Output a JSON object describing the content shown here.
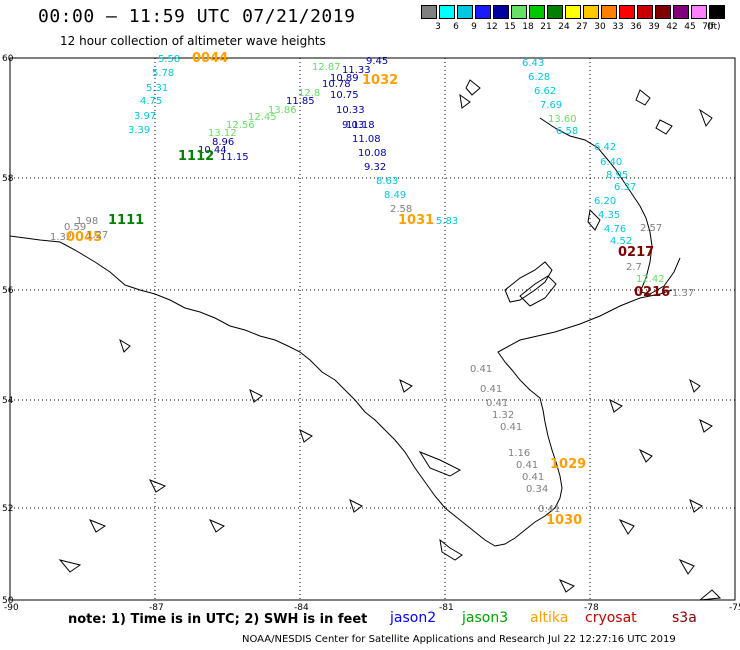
{
  "title": "00:00 – 11:59 UTC 07/21/2019",
  "subtitle": "12 hour collection of altimeter wave heights",
  "scale": {
    "labels": [
      "3",
      "6",
      "9",
      "12",
      "15",
      "18",
      "21",
      "24",
      "27",
      "30",
      "33",
      "36",
      "39",
      "42",
      "45",
      "70"
    ],
    "colors": [
      "#808080",
      "#00ffff",
      "#00c8e0",
      "#1a1aff",
      "#0000a0",
      "#66e066",
      "#00c800",
      "#008000",
      "#ffff00",
      "#ffc800",
      "#ff8000",
      "#ff0000",
      "#c80000",
      "#800000",
      "#800080",
      "#ff80ff",
      "#000000"
    ],
    "unit": "(ft)"
  },
  "axes": {
    "lat_labels": [
      "60",
      "58",
      "56",
      "54",
      "52",
      "50"
    ],
    "lon_labels": [
      "-90",
      "-87",
      "-84",
      "-81",
      "-78",
      "-75"
    ]
  },
  "note": "note:  1) Time is in UTC;  2) SWH is in feet",
  "satellites": [
    {
      "name": "jason2",
      "color": "#0000ff"
    },
    {
      "name": "jason3",
      "color": "#00a000"
    },
    {
      "name": "altika",
      "color": "#ffa000"
    },
    {
      "name": "cryosat",
      "color": "#c00000"
    },
    {
      "name": "s3a",
      "color": "#800000"
    }
  ],
  "credit": "NOAA/NESDIS Center for Satellite Applications and Research      Jul 22 12:27:16 UTC 2019",
  "readings": [
    {
      "text": "5.58",
      "color": "#00c8e0"
    },
    {
      "text": "5.78",
      "color": "#00c8e0"
    },
    {
      "text": "5.31",
      "color": "#00c8e0"
    },
    {
      "text": "4.75",
      "color": "#00c8e0"
    },
    {
      "text": "3.97",
      "color": "#00c8e0"
    },
    {
      "text": "3.39",
      "color": "#00c8e0"
    },
    {
      "text": "0044",
      "color": "#ffa000"
    },
    {
      "text": "12.87",
      "color": "#66e066"
    },
    {
      "text": "9.45",
      "color": "#0000a0"
    },
    {
      "text": "11.33",
      "color": "#0000a0"
    },
    {
      "text": "10.89",
      "color": "#0000a0"
    },
    {
      "text": "10.78",
      "color": "#0000a0"
    },
    {
      "text": "1032",
      "color": "#ffa000"
    },
    {
      "text": "12.8",
      "color": "#66e066"
    },
    {
      "text": "13.86",
      "color": "#66e066"
    },
    {
      "text": "12.45",
      "color": "#66e066"
    },
    {
      "text": "12.56",
      "color": "#66e066"
    },
    {
      "text": "13.12",
      "color": "#66e066"
    },
    {
      "text": "11.85",
      "color": "#0000a0"
    },
    {
      "text": "10.75",
      "color": "#0000a0"
    },
    {
      "text": "10.33",
      "color": "#0000a0"
    },
    {
      "text": "9.03",
      "color": "#0000a0"
    },
    {
      "text": "8.96",
      "color": "#0000a0"
    },
    {
      "text": "10.44",
      "color": "#0000a0"
    },
    {
      "text": "1112",
      "color": "#008000"
    },
    {
      "text": "11.15",
      "color": "#0000a0"
    },
    {
      "text": "11.18",
      "color": "#0000a0"
    },
    {
      "text": "11.08",
      "color": "#0000a0"
    },
    {
      "text": "10.08",
      "color": "#0000a0"
    },
    {
      "text": "9.32",
      "color": "#0000a0"
    },
    {
      "text": "8.63",
      "color": "#00c8e0"
    },
    {
      "text": "8.49",
      "color": "#00c8e0"
    },
    {
      "text": "2.58",
      "color": "#808080"
    },
    {
      "text": "1031",
      "color": "#ffa000"
    },
    {
      "text": "5.83",
      "color": "#00c8e0"
    },
    {
      "text": "6.43",
      "color": "#00c8e0"
    },
    {
      "text": "6.28",
      "color": "#00c8e0"
    },
    {
      "text": "6.62",
      "color": "#00c8e0"
    },
    {
      "text": "7.69",
      "color": "#00c8e0"
    },
    {
      "text": "13.60",
      "color": "#66e066"
    },
    {
      "text": "6.58",
      "color": "#00c8e0"
    },
    {
      "text": "6.42",
      "color": "#00c8e0"
    },
    {
      "text": "6.40",
      "color": "#00c8e0"
    },
    {
      "text": "8.95",
      "color": "#00c8e0"
    },
    {
      "text": "6.37",
      "color": "#00c8e0"
    },
    {
      "text": "6.20",
      "color": "#00c8e0"
    },
    {
      "text": "4.35",
      "color": "#00c8e0"
    },
    {
      "text": "4.76",
      "color": "#00c8e0"
    },
    {
      "text": "4.52",
      "color": "#00c8e0"
    },
    {
      "text": "0217",
      "color": "#800000"
    },
    {
      "text": "2.57",
      "color": "#808080"
    },
    {
      "text": "2.7",
      "color": "#808080"
    },
    {
      "text": "12.42",
      "color": "#66e066"
    },
    {
      "text": "0216",
      "color": "#800000"
    },
    {
      "text": "1.37",
      "color": "#808080"
    },
    {
      "text": "1.98",
      "color": "#808080"
    },
    {
      "text": "0.59",
      "color": "#808080"
    },
    {
      "text": "1.32",
      "color": "#808080"
    },
    {
      "text": "0045",
      "color": "#ffa000"
    },
    {
      "text": "1111",
      "color": "#008000"
    },
    {
      "text": "1.27",
      "color": "#808080"
    },
    {
      "text": "0.41",
      "color": "#808080"
    },
    {
      "text": "0.41",
      "color": "#808080"
    },
    {
      "text": "0.41",
      "color": "#808080"
    },
    {
      "text": "1.32",
      "color": "#808080"
    },
    {
      "text": "0.41",
      "color": "#808080"
    },
    {
      "text": "1.16",
      "color": "#808080"
    },
    {
      "text": "0.41",
      "color": "#808080"
    },
    {
      "text": "0.41",
      "color": "#808080"
    },
    {
      "text": "0.34",
      "color": "#808080"
    },
    {
      "text": "0.41",
      "color": "#808080"
    },
    {
      "text": "1030",
      "color": "#ffa000"
    },
    {
      "text": "1029",
      "color": "#ffa000"
    }
  ]
}
